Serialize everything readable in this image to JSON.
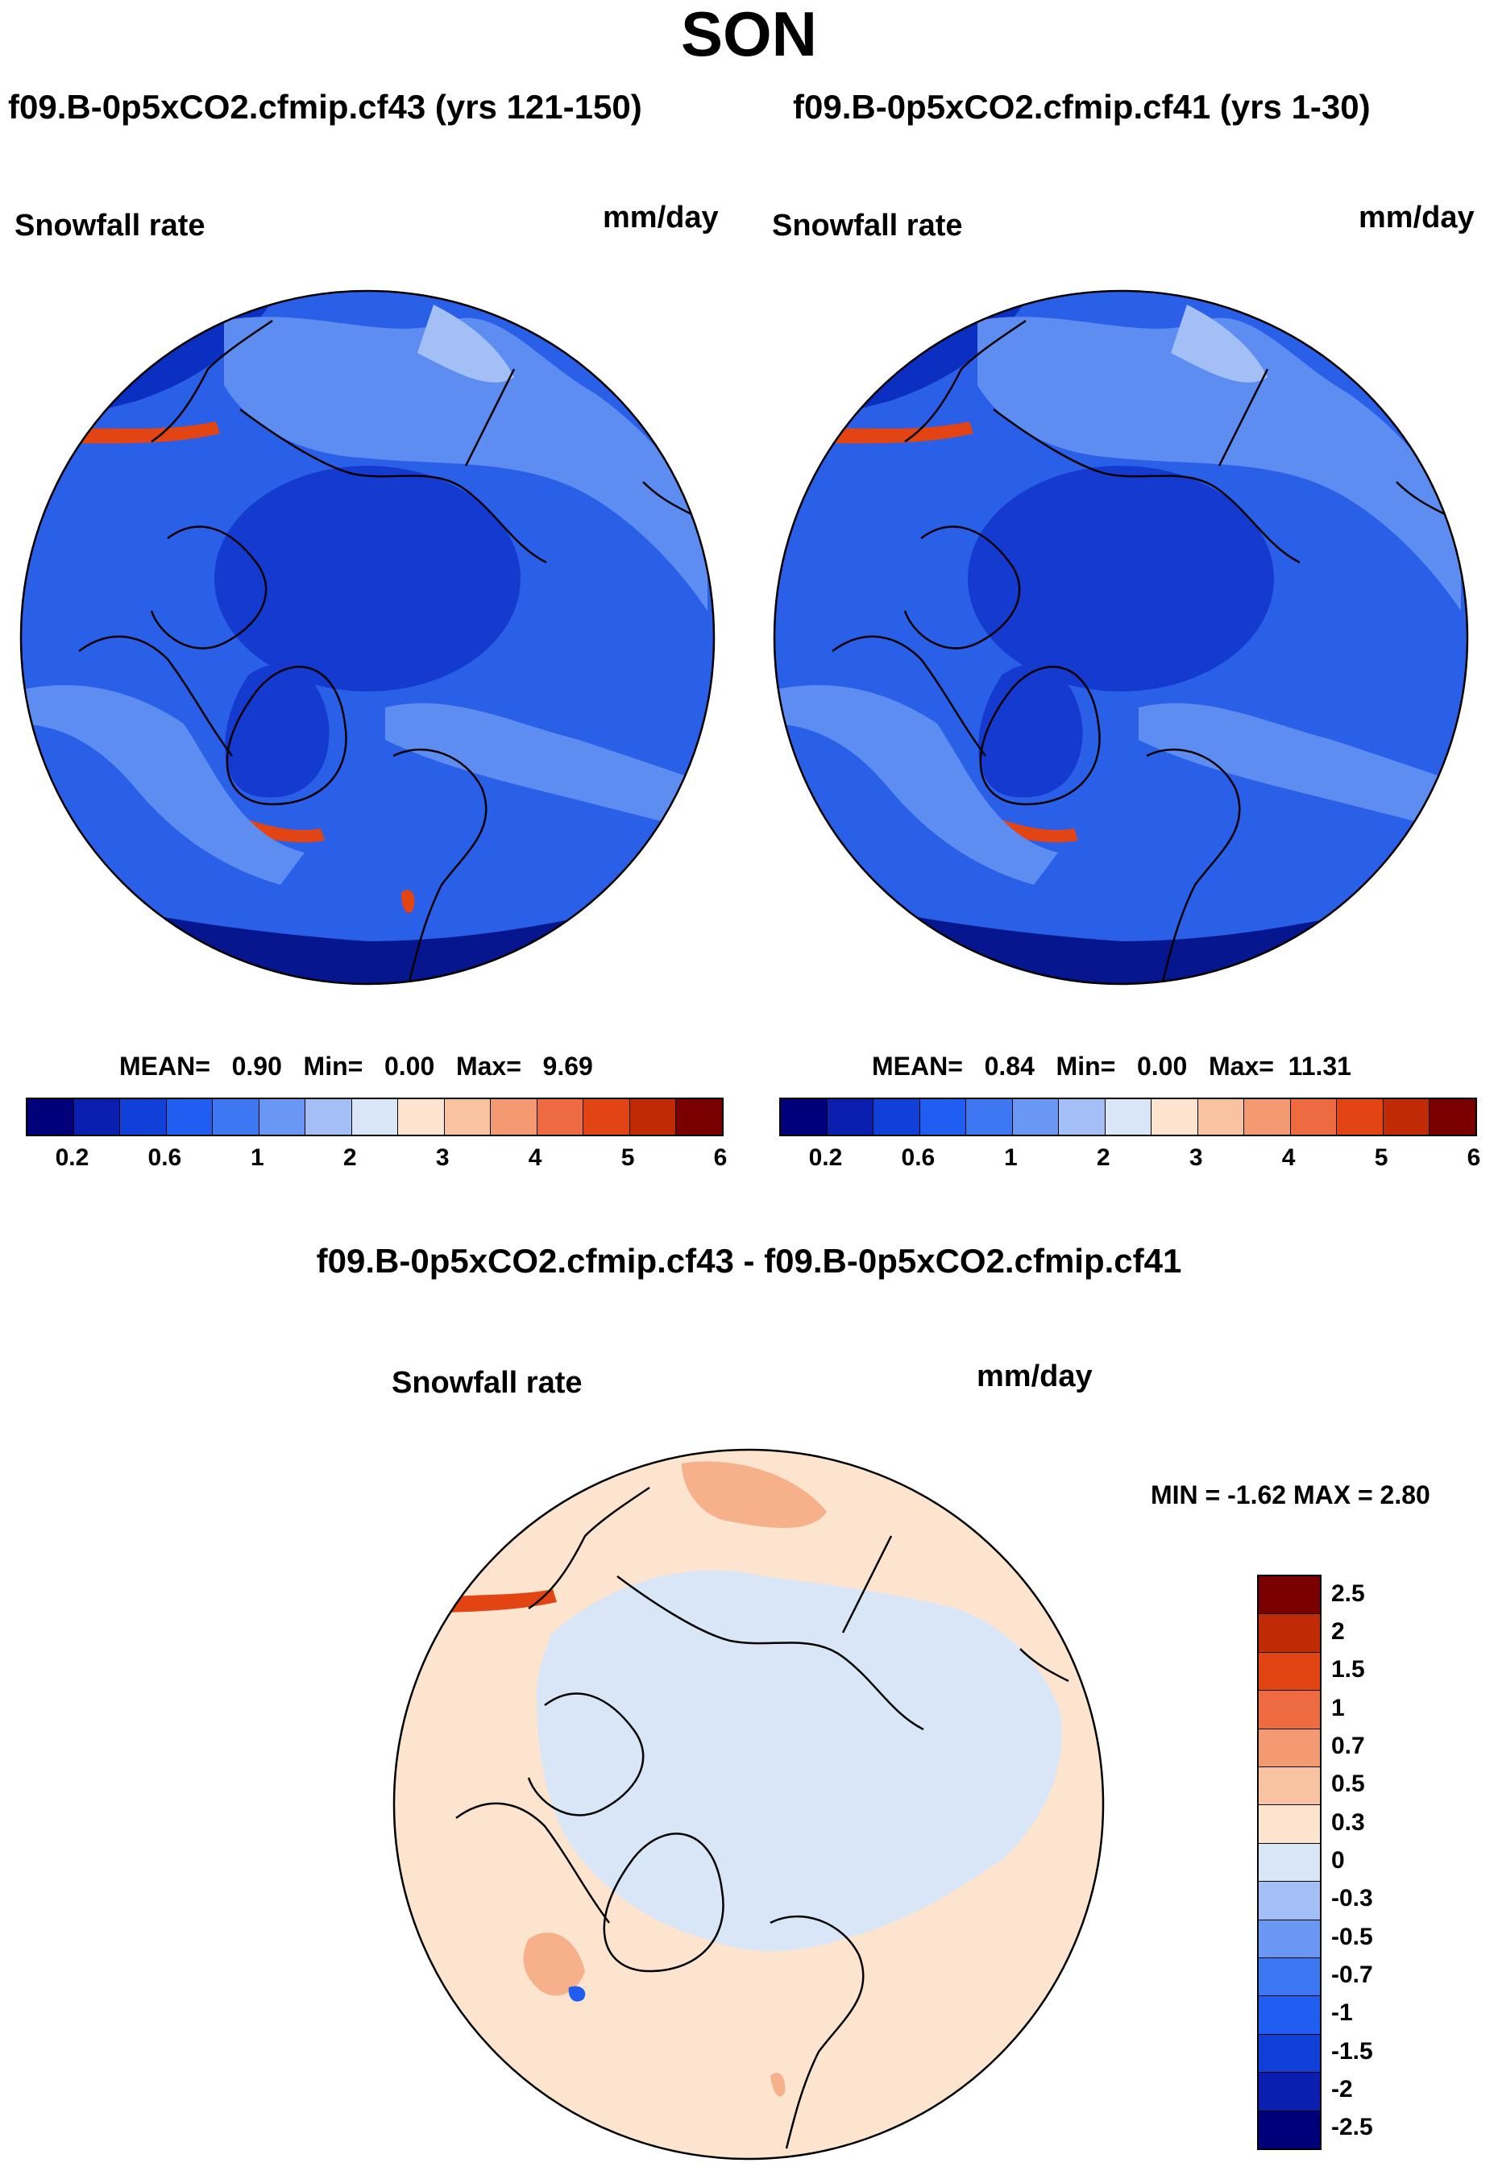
{
  "header": {
    "season": "SON"
  },
  "panels": [
    {
      "case_title": "f09.B-0p5xCO2.cfmip.cf43 (yrs 121-150)",
      "variable": "Snowfall rate",
      "units": "mm/day",
      "stats": {
        "mean_label": "MEAN=",
        "mean": "0.90",
        "min_label": "Min=",
        "min": "0.00",
        "max_label": "Max=",
        "max": "9.69"
      }
    },
    {
      "case_title": "f09.B-0p5xCO2.cfmip.cf41 (yrs 1-30)",
      "variable": "Snowfall rate",
      "units": "mm/day",
      "stats": {
        "mean_label": "MEAN=",
        "mean": "0.84",
        "min_label": "Min=",
        "min": "0.00",
        "max_label": "Max=",
        "max": "11.31"
      }
    }
  ],
  "abs_colorbar": {
    "colors": [
      "#00007a",
      "#0a1fb0",
      "#1040d8",
      "#1f5ef0",
      "#3d78f2",
      "#6a97f3",
      "#a3bff5",
      "#d8e6f8",
      "#fde4cf",
      "#f9c2a0",
      "#f49a73",
      "#ee6a40",
      "#e34414",
      "#c02a05",
      "#7a0000"
    ],
    "ticks": [
      "0.2",
      "0.6",
      "1",
      "2",
      "3",
      "4",
      "5",
      "6"
    ]
  },
  "diff": {
    "title": "f09.B-0p5xCO2.cfmip.cf43 - f09.B-0p5xCO2.cfmip.cf41",
    "variable": "Snowfall rate",
    "units": "mm/day",
    "minmax": "MIN =  -1.62 MAX =   2.80",
    "colorbar": {
      "colors": [
        "#7a0000",
        "#c02a05",
        "#e34414",
        "#ee6a40",
        "#f49a73",
        "#f9c2a0",
        "#fde4cf",
        "#d8e6f8",
        "#a3bff5",
        "#6a97f3",
        "#3d78f2",
        "#1f5ef0",
        "#1040d8",
        "#0a1fb0",
        "#00007a"
      ],
      "ticks": [
        "2.5",
        "2",
        "1.5",
        "1",
        "0.7",
        "0.5",
        "0.3",
        "0",
        "-0.3",
        "-0.5",
        "-0.7",
        "-1",
        "-1.5",
        "-2",
        "-2.5"
      ]
    }
  },
  "map_colors": {
    "ocean_deep": "#0b2fc0",
    "ocean_mid": "#2a5fe8",
    "light_band": "#5d8df0",
    "pale": "#a3bff5",
    "polar": "#143ad0",
    "south_dark": "#06168e",
    "red_band": "#e34414",
    "diff_pos": "#fde4cf",
    "diff_pos2": "#f6b08a",
    "diff_neg": "#d8e6f8"
  }
}
